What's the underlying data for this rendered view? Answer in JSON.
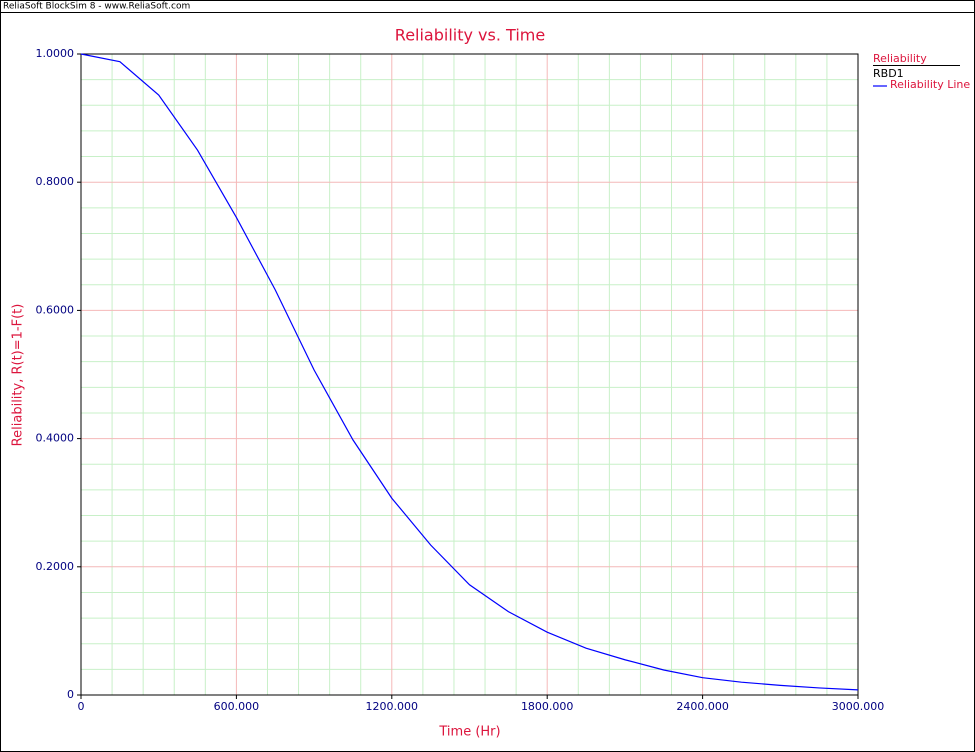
{
  "app_header": "ReliaSoft BlockSim 8 - www.ReliaSoft.com",
  "chart_data": {
    "type": "line",
    "title": "Reliability vs. Time",
    "xlabel": "Time (Hr)",
    "ylabel": "Reliability, R(t)=1-F(t)",
    "legend_title": "Reliability",
    "legend_group": "RBD1",
    "legend": "right",
    "x": [
      0,
      150,
      300,
      450,
      600,
      750,
      900,
      1050,
      1200,
      1350,
      1500,
      1650,
      1800,
      1950,
      2100,
      2250,
      2400,
      2550,
      2700,
      2850,
      3000
    ],
    "series": [
      {
        "name": "Reliability Line",
        "color": "#0000ff",
        "values": [
          1.0,
          0.988,
          0.936,
          0.85,
          0.745,
          0.632,
          0.507,
          0.398,
          0.307,
          0.234,
          0.172,
          0.13,
          0.098,
          0.073,
          0.055,
          0.039,
          0.027,
          0.02,
          0.015,
          0.011,
          0.008
        ]
      }
    ],
    "xlim": [
      0,
      3000
    ],
    "ylim": [
      0,
      1
    ],
    "xticks": [
      0,
      {
        "value": 600,
        "label": "600.000"
      },
      {
        "value": 1200,
        "label": "1200.000"
      },
      {
        "value": 1800,
        "label": "1800.000"
      },
      {
        "value": 2400,
        "label": "2400.000"
      },
      {
        "value": 3000,
        "label": "3000.000"
      }
    ],
    "yticks": [
      0,
      {
        "value": 0.2,
        "label": "0.2000"
      },
      {
        "value": 0.4,
        "label": "0.4000"
      },
      {
        "value": 0.6,
        "label": "0.6000"
      },
      {
        "value": 0.8,
        "label": "0.8000"
      },
      {
        "value": 1,
        "label": "1.0000"
      }
    ],
    "grid": true
  }
}
